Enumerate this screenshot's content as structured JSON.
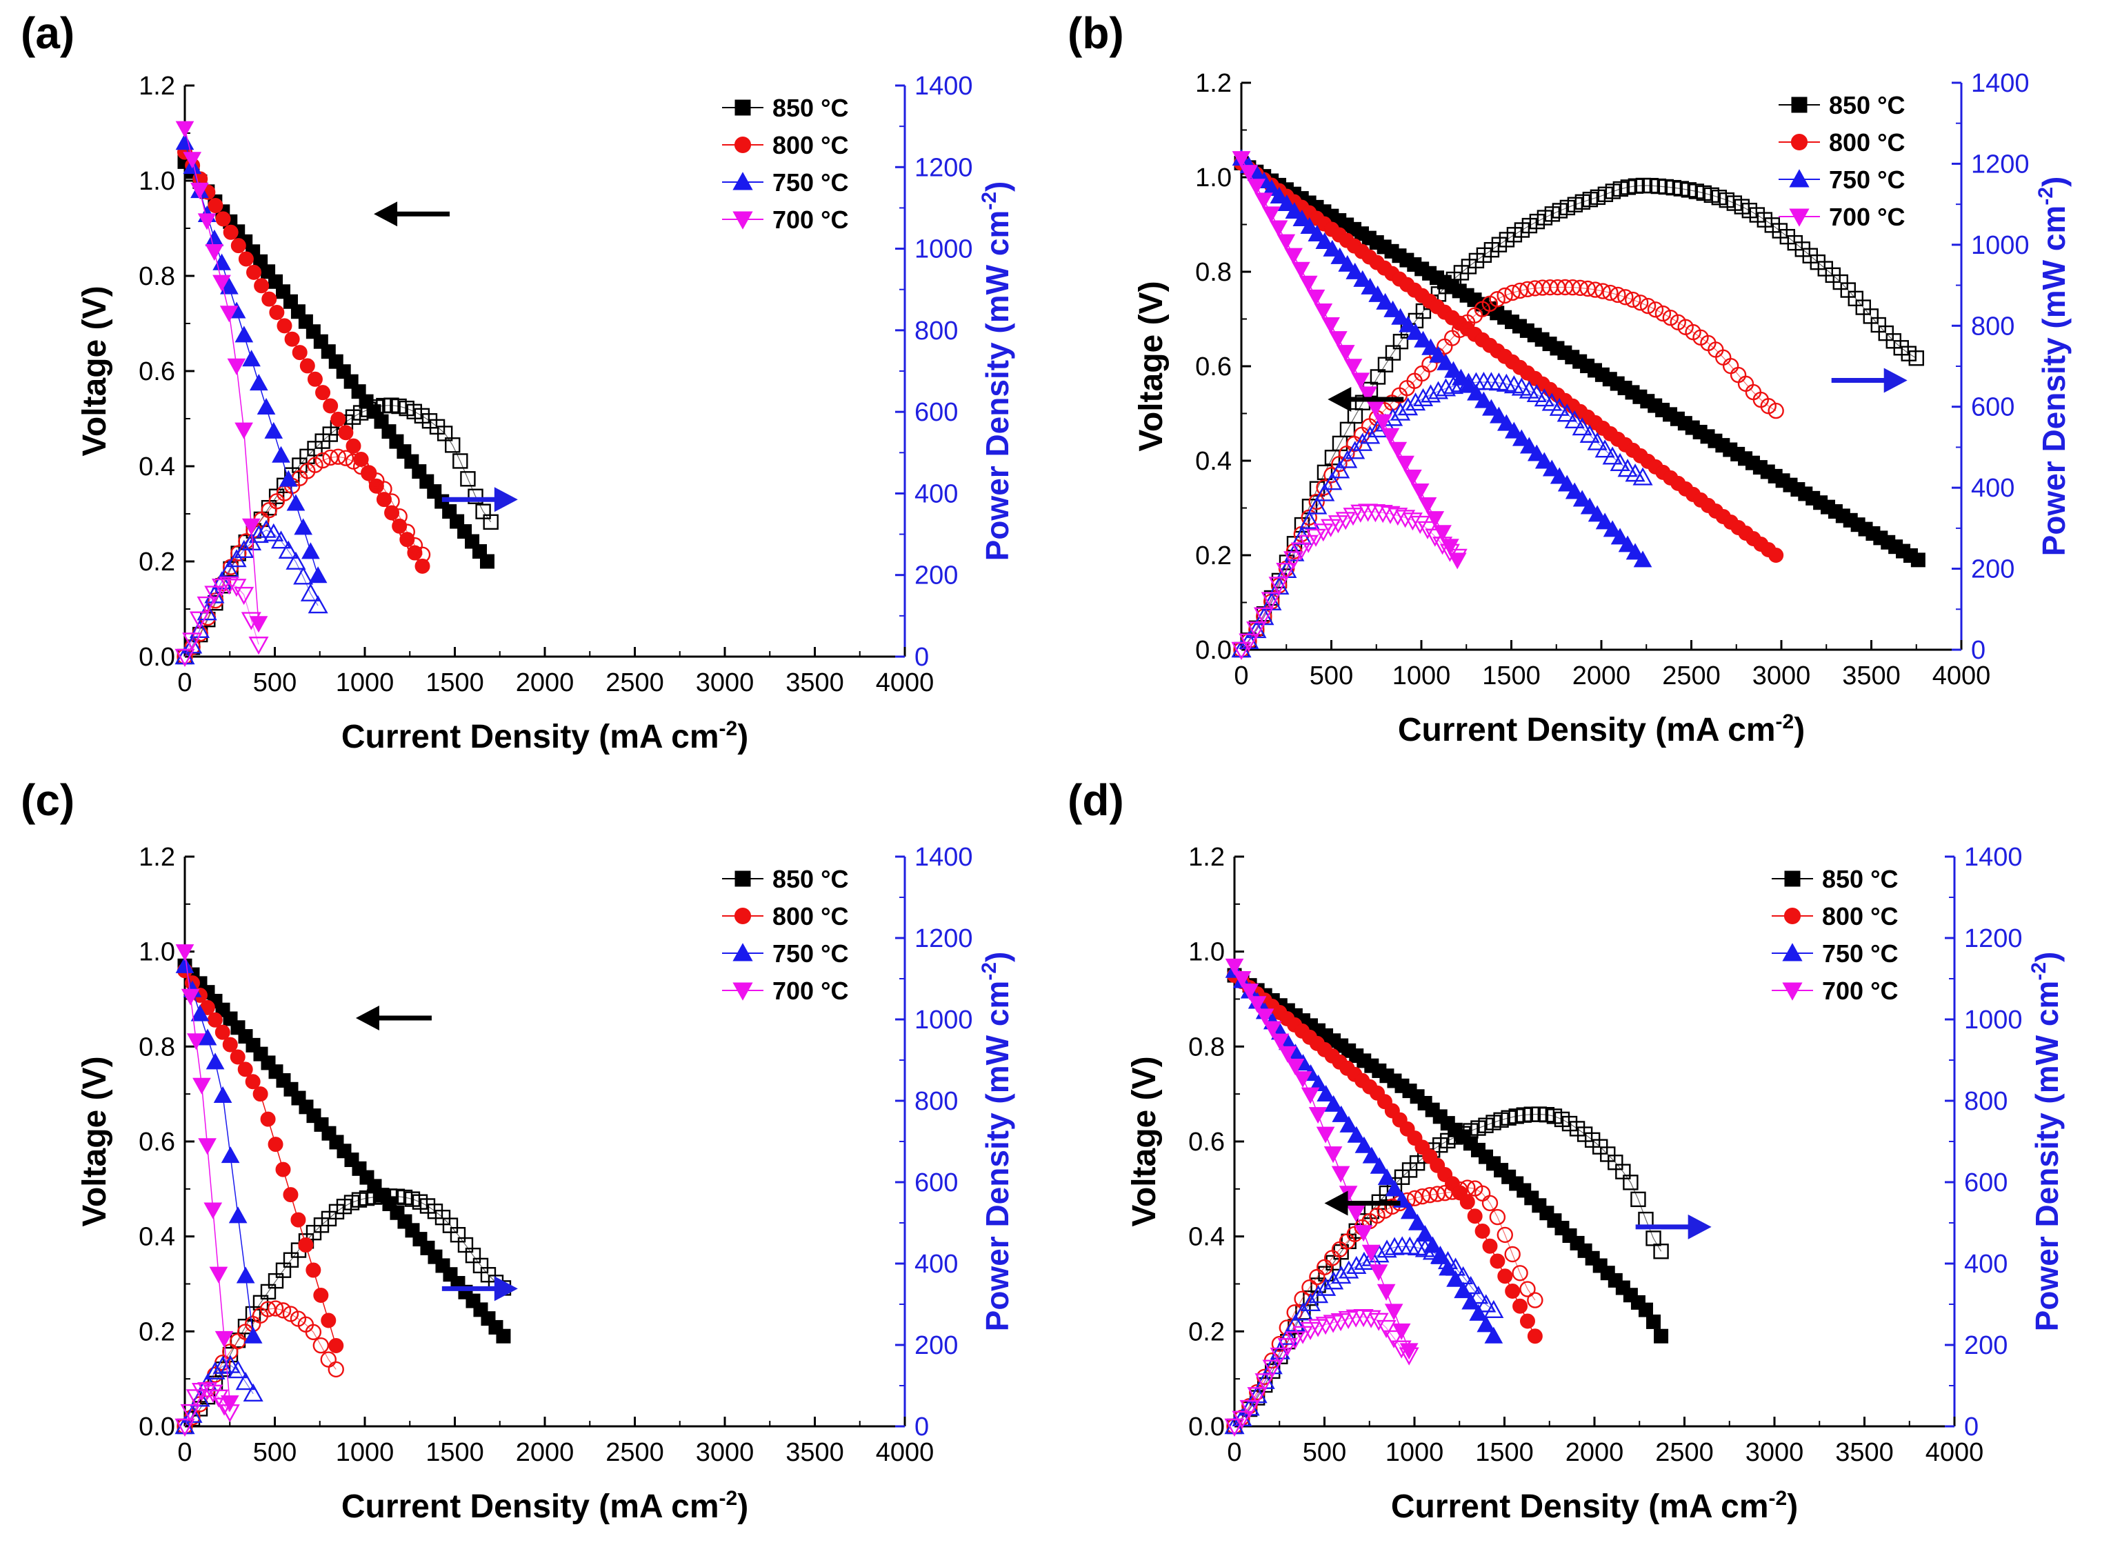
{
  "figure": {
    "background": "#ffffff"
  },
  "style": {
    "left_axis_color": "#000000",
    "right_axis_color": "#1f1fe0",
    "series_colors": {
      "850": "#000000",
      "800": "#ee1111",
      "750": "#1a1aee",
      "700": "#ee11ee"
    }
  },
  "chart_data": [
    {
      "panel_label": "(a)",
      "type": "line",
      "xlabel": "Current Density (mA cm",
      "xlabel_sup": "-2",
      "xlabel_end": ")",
      "ylabel": "Voltage (V)",
      "y2label": "Power Density (mW cm",
      "y2label_sup": "-2",
      "y2label_end": ")",
      "xlim": [
        0,
        4000
      ],
      "ylim": [
        0,
        1.2
      ],
      "y2lim": [
        0,
        1400
      ],
      "xticks": [
        "0",
        "500",
        "1000",
        "1500",
        "2000",
        "2500",
        "3000",
        "3500",
        "4000"
      ],
      "yticks": [
        "0.0",
        "0.2",
        "0.4",
        "0.6",
        "0.8",
        "1.0",
        "1.2"
      ],
      "y2ticks": [
        "0",
        "200",
        "400",
        "600",
        "800",
        "1000",
        "1200",
        "1400"
      ],
      "legend": [
        "850 °C",
        "800 °C",
        "750 °C",
        "700 °C"
      ],
      "series": [
        {
          "name": "850 °C",
          "voltage": [
            [
              0,
              1.04
            ],
            [
              1680,
              0.2
            ]
          ],
          "power": [
            [
              0,
              0
            ],
            [
              300,
              255
            ],
            [
              700,
              500
            ],
            [
              1100,
              615
            ],
            [
              1450,
              545
            ],
            [
              1700,
              330
            ]
          ]
        },
        {
          "name": "800 °C",
          "voltage": [
            [
              0,
              1.06
            ],
            [
              1320,
              0.19
            ]
          ],
          "power": [
            [
              0,
              0
            ],
            [
              300,
              255
            ],
            [
              600,
              420
            ],
            [
              850,
              490
            ],
            [
              1100,
              415
            ],
            [
              1320,
              250
            ]
          ]
        },
        {
          "name": "750 °C",
          "voltage": [
            [
              0,
              1.08
            ],
            [
              740,
              0.17
            ]
          ],
          "power": [
            [
              0,
              0
            ],
            [
              200,
              180
            ],
            [
              400,
              290
            ],
            [
              480,
              305
            ],
            [
              620,
              230
            ],
            [
              740,
              125
            ]
          ]
        },
        {
          "name": "700 °C",
          "voltage": [
            [
              0,
              1.11
            ],
            [
              260,
              0.7
            ],
            [
              330,
              0.47
            ],
            [
              410,
              0.07
            ]
          ],
          "power": [
            [
              0,
              0
            ],
            [
              100,
              110
            ],
            [
              200,
              170
            ],
            [
              260,
              175
            ],
            [
              330,
              150
            ],
            [
              410,
              30
            ]
          ]
        }
      ],
      "arrows": [
        {
          "direction": "left",
          "x": 1050,
          "y": 0.93,
          "axis": "left"
        },
        {
          "direction": "right",
          "x": 1850,
          "y": 0.33,
          "axis": "right"
        }
      ]
    },
    {
      "panel_label": "(b)",
      "type": "line",
      "xlabel": "Current Density (mA cm",
      "xlabel_sup": "-2",
      "xlabel_end": ")",
      "ylabel": "Voltage (V)",
      "y2label": "Power Density (mW cm",
      "y2label_sup": "-2",
      "y2label_end": ")",
      "xlim": [
        0,
        4000
      ],
      "ylim": [
        0,
        1.2
      ],
      "y2lim": [
        0,
        1400
      ],
      "xticks": [
        "0",
        "500",
        "1000",
        "1500",
        "2000",
        "2500",
        "3000",
        "3500",
        "4000"
      ],
      "yticks": [
        "0.0",
        "0.2",
        "0.4",
        "0.6",
        "0.8",
        "1.0",
        "1.2"
      ],
      "y2ticks": [
        "0",
        "200",
        "400",
        "600",
        "800",
        "1000",
        "1200",
        "1400"
      ],
      "legend": [
        "850 °C",
        "800 °C",
        "750 °C",
        "700 °C"
      ],
      "series": [
        {
          "name": "850 °C",
          "voltage": [
            [
              0,
              1.03
            ],
            [
              3760,
              0.19
            ]
          ],
          "power": [
            [
              0,
              0
            ],
            [
              500,
              470
            ],
            [
              1000,
              830
            ],
            [
              1500,
              1020
            ],
            [
              2000,
              1120
            ],
            [
              2300,
              1145
            ],
            [
              2800,
              1090
            ],
            [
              3300,
              920
            ],
            [
              3750,
              720
            ]
          ]
        },
        {
          "name": "800 °C",
          "voltage": [
            [
              0,
              1.03
            ],
            [
              2970,
              0.2
            ]
          ],
          "power": [
            [
              0,
              0
            ],
            [
              500,
              430
            ],
            [
              1000,
              680
            ],
            [
              1400,
              860
            ],
            [
              1800,
              895
            ],
            [
              2200,
              860
            ],
            [
              2600,
              755
            ],
            [
              2970,
              590
            ]
          ]
        },
        {
          "name": "750 °C",
          "voltage": [
            [
              0,
              1.04
            ],
            [
              2230,
              0.19
            ]
          ],
          "power": [
            [
              0,
              0
            ],
            [
              500,
              410
            ],
            [
              900,
              590
            ],
            [
              1300,
              660
            ],
            [
              1700,
              615
            ],
            [
              2230,
              425
            ]
          ]
        },
        {
          "name": "700 °C",
          "voltage": [
            [
              0,
              1.04
            ],
            [
              1200,
              0.19
            ]
          ],
          "power": [
            [
              0,
              0
            ],
            [
              300,
              230
            ],
            [
              600,
              325
            ],
            [
              750,
              340
            ],
            [
              1000,
              310
            ],
            [
              1200,
              230
            ]
          ]
        }
      ],
      "arrows": [
        {
          "direction": "left",
          "x": 480,
          "y": 0.53,
          "axis": "left"
        },
        {
          "direction": "right",
          "x": 3700,
          "y": 0.57,
          "axis": "right"
        }
      ]
    },
    {
      "panel_label": "(c)",
      "type": "line",
      "xlabel": "Current Density (mA cm",
      "xlabel_sup": "-2",
      "xlabel_end": ")",
      "ylabel": "Voltage (V)",
      "y2label": "Power Density (mW cm",
      "y2label_sup": "-2",
      "y2label_end": ")",
      "xlim": [
        0,
        4000
      ],
      "ylim": [
        0,
        1.2
      ],
      "y2lim": [
        0,
        1400
      ],
      "xticks": [
        "0",
        "500",
        "1000",
        "1500",
        "2000",
        "2500",
        "3000",
        "3500",
        "4000"
      ],
      "yticks": [
        "0.0",
        "0.2",
        "0.4",
        "0.6",
        "0.8",
        "1.0",
        "1.2"
      ],
      "y2ticks": [
        "0",
        "200",
        "400",
        "600",
        "800",
        "1000",
        "1200",
        "1400"
      ],
      "legend": [
        "850 °C",
        "800 °C",
        "750 °C",
        "700 °C"
      ],
      "series": [
        {
          "name": "850 °C",
          "voltage": [
            [
              0,
              0.97
            ],
            [
              1770,
              0.19
            ]
          ],
          "power": [
            [
              0,
              0
            ],
            [
              400,
              290
            ],
            [
              800,
              510
            ],
            [
              1100,
              565
            ],
            [
              1400,
              525
            ],
            [
              1770,
              340
            ]
          ]
        },
        {
          "name": "800 °C",
          "voltage": [
            [
              0,
              0.96
            ],
            [
              420,
              0.7
            ],
            [
              840,
              0.17
            ]
          ],
          "power": [
            [
              0,
              0
            ],
            [
              200,
              150
            ],
            [
              400,
              260
            ],
            [
              500,
              290
            ],
            [
              700,
              240
            ],
            [
              840,
              140
            ]
          ]
        },
        {
          "name": "750 °C",
          "voltage": [
            [
              0,
              0.97
            ],
            [
              200,
              0.73
            ],
            [
              380,
              0.19
            ]
          ],
          "power": [
            [
              0,
              0
            ],
            [
              150,
              120
            ],
            [
              230,
              150
            ],
            [
              300,
              135
            ],
            [
              380,
              80
            ]
          ]
        },
        {
          "name": "700 °C",
          "voltage": [
            [
              0,
              1.0
            ],
            [
              100,
              0.7
            ],
            [
              250,
              0.05
            ]
          ],
          "power": [
            [
              0,
              0
            ],
            [
              60,
              70
            ],
            [
              110,
              90
            ],
            [
              180,
              75
            ],
            [
              250,
              35
            ]
          ]
        }
      ],
      "arrows": [
        {
          "direction": "left",
          "x": 950,
          "y": 0.86,
          "axis": "left"
        },
        {
          "direction": "right",
          "x": 1850,
          "y": 0.29,
          "axis": "right"
        }
      ]
    },
    {
      "panel_label": "(d)",
      "type": "line",
      "xlabel": "Current Density (mA cm",
      "xlabel_sup": "-2",
      "xlabel_end": ")",
      "ylabel": "Voltage (V)",
      "y2label": "Power Density (mW cm",
      "y2label_sup": "-2",
      "y2label_end": ")",
      "xlim": [
        0,
        4000
      ],
      "ylim": [
        0,
        1.2
      ],
      "y2lim": [
        0,
        1400
      ],
      "xticks": [
        "0",
        "500",
        "1000",
        "1500",
        "2000",
        "2500",
        "3000",
        "3500",
        "4000"
      ],
      "yticks": [
        "0.0",
        "0.2",
        "0.4",
        "0.6",
        "0.8",
        "1.0",
        "1.2"
      ],
      "y2ticks": [
        "0",
        "200",
        "400",
        "600",
        "800",
        "1000",
        "1200",
        "1400"
      ],
      "legend": [
        "850 °C",
        "800 °C",
        "750 °C",
        "700 °C"
      ],
      "series": [
        {
          "name": "850 °C",
          "voltage": [
            [
              0,
              0.95
            ],
            [
              1000,
              0.7
            ],
            [
              1600,
              0.5
            ],
            [
              2000,
              0.35
            ],
            [
              2300,
              0.24
            ],
            [
              2370,
              0.19
            ]
          ],
          "power": [
            [
              0,
              0
            ],
            [
              500,
              370
            ],
            [
              1000,
              640
            ],
            [
              1400,
              740
            ],
            [
              1750,
              765
            ],
            [
              2000,
              700
            ],
            [
              2200,
              600
            ],
            [
              2370,
              430
            ]
          ]
        },
        {
          "name": "800 °C",
          "voltage": [
            [
              0,
              0.95
            ],
            [
              800,
              0.7
            ],
            [
              1300,
              0.47
            ],
            [
              1670,
              0.19
            ]
          ],
          "power": [
            [
              0,
              0
            ],
            [
              400,
              330
            ],
            [
              800,
              520
            ],
            [
              1200,
              575
            ],
            [
              1400,
              560
            ],
            [
              1670,
              310
            ]
          ]
        },
        {
          "name": "750 °C",
          "voltage": [
            [
              0,
              0.96
            ],
            [
              800,
              0.55
            ],
            [
              1440,
              0.19
            ]
          ],
          "power": [
            [
              0,
              0
            ],
            [
              400,
              290
            ],
            [
              800,
              420
            ],
            [
              1000,
              440
            ],
            [
              1200,
              400
            ],
            [
              1440,
              285
            ]
          ]
        },
        {
          "name": "700 °C",
          "voltage": [
            [
              0,
              0.97
            ],
            [
              400,
              0.72
            ],
            [
              970,
              0.16
            ]
          ],
          "power": [
            [
              0,
              0
            ],
            [
              300,
              200
            ],
            [
              600,
              260
            ],
            [
              800,
              260
            ],
            [
              970,
              175
            ]
          ]
        }
      ],
      "arrows": [
        {
          "direction": "left",
          "x": 500,
          "y": 0.47,
          "axis": "left"
        },
        {
          "direction": "right",
          "x": 2650,
          "y": 0.42,
          "axis": "right"
        }
      ]
    }
  ]
}
